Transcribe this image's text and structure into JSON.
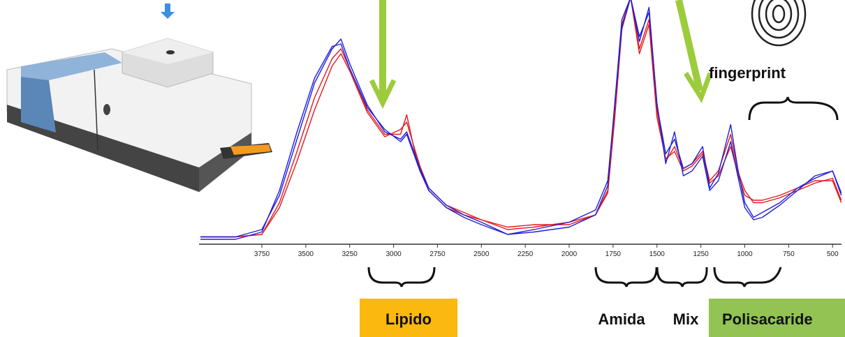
{
  "chart_data": {
    "type": "line",
    "x": [
      4100,
      3900,
      3750,
      3650,
      3550,
      3450,
      3350,
      3300,
      3250,
      3150,
      3050,
      2960,
      2925,
      2880,
      2850,
      2800,
      2700,
      2600,
      2500,
      2350,
      2200,
      2000,
      1850,
      1780,
      1740,
      1700,
      1650,
      1600,
      1545,
      1500,
      1450,
      1400,
      1350,
      1300,
      1240,
      1200,
      1150,
      1080,
      1040,
      1000,
      950,
      900,
      800,
      700,
      600,
      500,
      450
    ],
    "series": [
      {
        "color": "#e31a1c",
        "values": [
          0.03,
          0.03,
          0.04,
          0.17,
          0.38,
          0.6,
          0.76,
          0.8,
          0.72,
          0.55,
          0.45,
          0.45,
          0.53,
          0.38,
          0.31,
          0.22,
          0.15,
          0.12,
          0.1,
          0.07,
          0.08,
          0.08,
          0.12,
          0.22,
          0.55,
          0.9,
          1.01,
          0.8,
          0.92,
          0.55,
          0.34,
          0.4,
          0.31,
          0.33,
          0.38,
          0.26,
          0.3,
          0.45,
          0.3,
          0.22,
          0.17,
          0.17,
          0.19,
          0.22,
          0.25,
          0.27,
          0.18
        ]
      },
      {
        "color": "#e31a1c",
        "values": [
          0.03,
          0.03,
          0.04,
          0.15,
          0.34,
          0.55,
          0.73,
          0.78,
          0.71,
          0.54,
          0.44,
          0.47,
          0.5,
          0.39,
          0.32,
          0.23,
          0.16,
          0.13,
          0.1,
          0.06,
          0.07,
          0.09,
          0.12,
          0.21,
          0.52,
          0.88,
          1.01,
          0.78,
          0.9,
          0.52,
          0.35,
          0.38,
          0.3,
          0.32,
          0.37,
          0.25,
          0.28,
          0.4,
          0.29,
          0.2,
          0.18,
          0.18,
          0.2,
          0.23,
          0.26,
          0.26,
          0.17
        ]
      },
      {
        "color": "#1f1fd6",
        "values": [
          0.03,
          0.03,
          0.06,
          0.2,
          0.43,
          0.66,
          0.8,
          0.84,
          0.74,
          0.57,
          0.46,
          0.43,
          0.46,
          0.37,
          0.31,
          0.23,
          0.16,
          0.12,
          0.09,
          0.04,
          0.06,
          0.09,
          0.14,
          0.26,
          0.57,
          0.89,
          1.01,
          0.83,
          0.97,
          0.57,
          0.37,
          0.43,
          0.31,
          0.33,
          0.4,
          0.23,
          0.29,
          0.49,
          0.31,
          0.17,
          0.11,
          0.13,
          0.17,
          0.23,
          0.27,
          0.3,
          0.21
        ]
      },
      {
        "color": "#1f1fd6",
        "values": [
          0.02,
          0.02,
          0.05,
          0.22,
          0.46,
          0.68,
          0.81,
          0.82,
          0.72,
          0.56,
          0.47,
          0.42,
          0.45,
          0.36,
          0.3,
          0.22,
          0.15,
          0.11,
          0.08,
          0.04,
          0.05,
          0.07,
          0.12,
          0.24,
          0.58,
          0.92,
          1.01,
          0.85,
          0.95,
          0.58,
          0.33,
          0.46,
          0.28,
          0.3,
          0.36,
          0.22,
          0.26,
          0.42,
          0.28,
          0.15,
          0.1,
          0.11,
          0.16,
          0.22,
          0.28,
          0.3,
          0.2
        ]
      }
    ],
    "xlim": [
      4108,
      449
    ],
    "ylim": [
      0,
      1
    ],
    "xticks": [
      3750,
      3500,
      3250,
      3000,
      2750,
      2500,
      2250,
      2000,
      1750,
      1500,
      1250,
      1000,
      750,
      500
    ],
    "annotations": [
      "fingerprint",
      "Lipido",
      "Amida",
      "Mix",
      "Polisacaride"
    ]
  }
}
